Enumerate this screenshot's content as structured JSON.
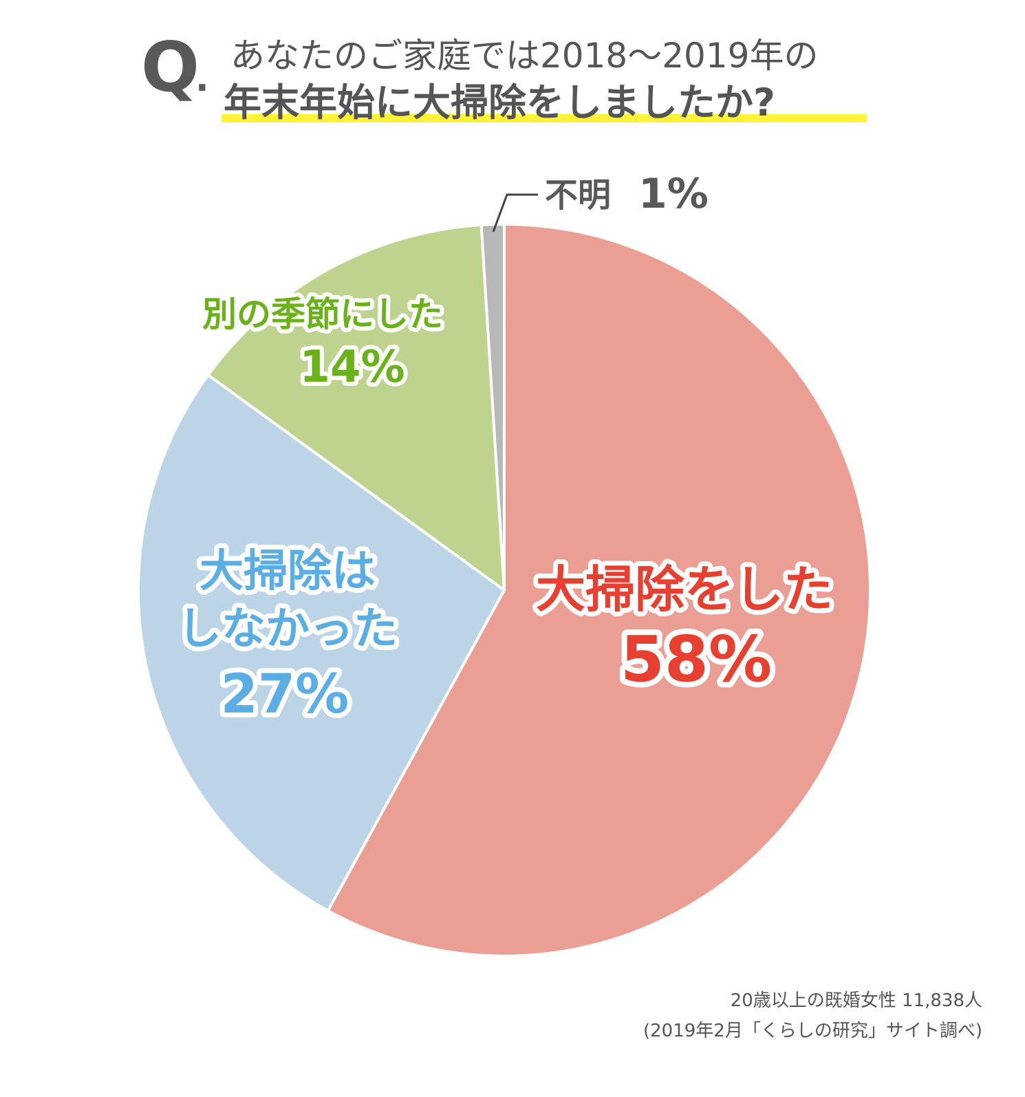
{
  "title": {
    "q_mark": "Q",
    "line1": "あなたのご家庭では2018〜2019年の",
    "line2": "年末年始に大掃除をしましたか?"
  },
  "chart_data": {
    "type": "pie",
    "start_angle_deg": 0,
    "direction": "clockwise",
    "slices": [
      {
        "label_lines": [
          "大掃除をした"
        ],
        "value": 58,
        "value_label": "58%",
        "color": "#eb9e93",
        "label_color": "#e84030"
      },
      {
        "label_lines": [
          "大掃除は",
          "しなかった"
        ],
        "value": 27,
        "value_label": "27%",
        "color": "#bcd5e6",
        "label_color": "#5aaee3"
      },
      {
        "label_lines": [
          "別の季節にした"
        ],
        "value": 14,
        "value_label": "14%",
        "color": "#bdd38e",
        "label_color": "#6ab219"
      },
      {
        "label_lines": [
          "不明"
        ],
        "value": 1,
        "value_label": "1%",
        "color": "#b8b8b8",
        "label_color": "#595959"
      }
    ]
  },
  "note": {
    "line1": "20歳以上の既婚女性 11,838人",
    "line2": "(2019年2月「くらしの研究」サイト調べ)"
  }
}
